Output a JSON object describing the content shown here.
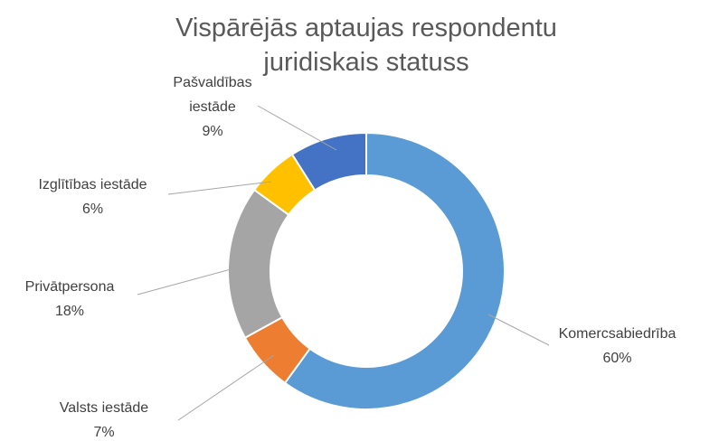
{
  "chart_data": {
    "type": "donut",
    "title": "Vispārējās aptaujas respondentu juridiskais statuss",
    "categories": [
      "Komercsabiedrība",
      "Valsts iestāde",
      "Privātpersona",
      "Izglītības iestāde",
      "Pašvaldības iestāde"
    ],
    "values": [
      60,
      7,
      18,
      6,
      9
    ],
    "value_labels": [
      "60%",
      "7%",
      "18%",
      "6%",
      "9%"
    ],
    "colors": [
      "#5b9bd5",
      "#ed7d31",
      "#a5a5a5",
      "#ffc000",
      "#4472c4"
    ]
  }
}
